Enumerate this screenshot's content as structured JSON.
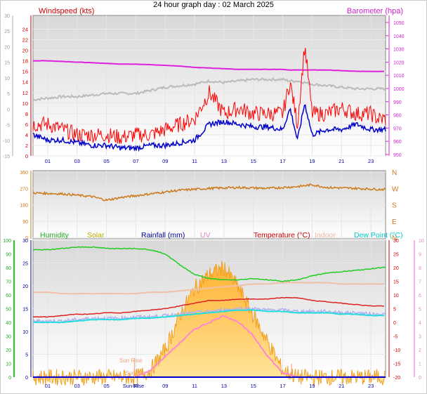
{
  "title": "24 hour graph day : 02 March 2025",
  "x_ticks": [
    "01",
    "03",
    "05",
    "07",
    "09",
    "11",
    "13",
    "15",
    "17",
    "19",
    "21",
    "23"
  ],
  "top_panel": {
    "left_label": "Windspeed (kts)",
    "right_label": "Barometer (hpa)",
    "left_ticks": [
      "24",
      "22",
      "20",
      "18",
      "16",
      "14",
      "12",
      "10",
      "8",
      "6",
      "4",
      "2",
      "0"
    ],
    "outer_left_ticks": [
      "30",
      "25",
      "20",
      "15",
      "10",
      "5",
      "0",
      "-5",
      "-10",
      "-15"
    ],
    "right_ticks": [
      "1050",
      "1040",
      "1030",
      "1020",
      "1010",
      "1000",
      "990",
      "980",
      "970",
      "960",
      "950"
    ],
    "colors": {
      "gust": "#ff0000",
      "wind": "#0000cc",
      "baro": "#dd22dd",
      "temp_bg": "#bbbbbb",
      "left_label": "#cc0000",
      "right_label": "#cc22cc"
    }
  },
  "mid_panel": {
    "left_ticks": [
      "360",
      "270",
      "180",
      "90",
      "0"
    ],
    "right_ticks": [
      "N",
      "W",
      "S",
      "E",
      "N"
    ],
    "color": "#cc7a1a"
  },
  "bottom_panel": {
    "headers": [
      {
        "text": "Humidity",
        "color": "#22aa22"
      },
      {
        "text": "Solar",
        "color": "#bbaa00"
      },
      {
        "text": "Rainfall (mm)",
        "color": "#000099"
      },
      {
        "text": "UV",
        "color": "#dd88cc"
      },
      {
        "text": "Temperature (°C)",
        "color": "#cc0000"
      },
      {
        "text": "Indoor",
        "color": "#f0b8a0"
      },
      {
        "text": "Dew Point (°C)",
        "color": "#00cccc"
      }
    ],
    "humidity_ticks": [
      "100",
      "90",
      "80",
      "70",
      "60",
      "50",
      "40",
      "30",
      "20",
      "10",
      "0"
    ],
    "rain_ticks": [
      "30",
      "25",
      "20",
      "15",
      "10",
      "5",
      "0"
    ],
    "temp_ticks": [
      "30",
      "25",
      "20",
      "15",
      "10",
      "5",
      "0",
      "-5",
      "-10",
      "-15",
      "-20"
    ],
    "uv_ticks": [
      "10",
      "9",
      "8",
      "7",
      "6",
      "5",
      "4",
      "3",
      "2",
      "1",
      "0"
    ],
    "annotations": {
      "sunrise": "Sun Rise",
      "sunset": "Sun Set",
      "sunrise_axis": "Sun Rise"
    }
  },
  "chart_data": [
    {
      "type": "line",
      "title": "24 hour graph day : 02 March 2025",
      "xlabel": "",
      "x": [
        0,
        1,
        2,
        3,
        4,
        5,
        6,
        7,
        8,
        9,
        10,
        11,
        12,
        13,
        14,
        15,
        16,
        17,
        17.5,
        18,
        18.5,
        19,
        20,
        21,
        22,
        23,
        23.5
      ],
      "series": [
        {
          "name": "Windspeed (kts)",
          "axis": "left",
          "values": [
            4,
            3,
            3,
            2.5,
            2,
            2,
            1.5,
            1.5,
            2,
            2,
            2.5,
            3,
            6,
            6.5,
            6,
            5.5,
            5.5,
            5,
            9,
            3,
            10,
            4,
            5,
            5,
            6,
            5,
            5
          ]
        },
        {
          "name": "Gust",
          "axis": "left",
          "values": [
            6,
            6,
            5,
            4,
            4,
            4,
            3.5,
            4,
            4,
            5,
            6,
            7,
            12,
            8,
            9,
            8,
            8,
            8,
            14,
            6,
            21,
            8,
            8,
            9,
            8,
            8,
            7
          ]
        },
        {
          "name": "Barometer (hpa)",
          "axis": "right",
          "values": [
            1021,
            1021,
            1020.5,
            1020,
            1019.5,
            1019,
            1018.5,
            1018.5,
            1018,
            1017.5,
            1017,
            1016,
            1015.5,
            1015,
            1014.5,
            1014.5,
            1014.5,
            1014.5,
            1014,
            1014,
            1014,
            1014,
            1014,
            1013.5,
            1013,
            1013,
            1013
          ]
        },
        {
          "name": "Temperature",
          "axis": "outer_left",
          "values": [
            3,
            3.5,
            4,
            4,
            4.5,
            5,
            5,
            5,
            6,
            7,
            7.5,
            8,
            9,
            8.5,
            9,
            9.5,
            9.5,
            9.5,
            9,
            9,
            8.5,
            8,
            7.5,
            7,
            6.5,
            6.5,
            6.5
          ]
        }
      ],
      "ylim_left": [
        0,
        25
      ],
      "ylim_right": [
        950,
        1050
      ],
      "ylim_outer_left": [
        -15,
        30
      ]
    },
    {
      "type": "scatter",
      "title": "",
      "x": [
        0,
        2,
        4,
        5,
        6,
        8,
        10,
        12,
        14,
        16,
        18,
        19,
        20,
        22,
        23.5
      ],
      "series": [
        {
          "name": "Wind direction",
          "values": [
            245,
            240,
            225,
            205,
            220,
            240,
            260,
            270,
            275,
            270,
            280,
            290,
            275,
            270,
            265
          ]
        }
      ],
      "ylim": [
        0,
        360
      ]
    },
    {
      "type": "line",
      "title": "",
      "x": [
        0,
        1,
        2,
        3,
        4,
        5,
        6,
        7,
        8,
        9,
        10,
        11,
        12,
        13,
        14,
        15,
        16,
        17,
        18,
        19,
        20,
        21,
        22,
        23,
        23.5
      ],
      "series": [
        {
          "name": "Humidity",
          "axis": "humidity",
          "values": [
            93,
            93,
            94,
            95,
            95,
            94,
            94,
            94,
            93,
            90,
            82,
            75,
            72,
            71,
            71,
            72,
            71,
            70,
            71,
            74,
            76,
            77,
            78,
            79,
            80
          ]
        },
        {
          "name": "Temperature (°C)",
          "axis": "temp",
          "values": [
            2,
            2,
            2.5,
            3,
            3,
            3.5,
            3.5,
            4,
            4.5,
            5,
            6,
            7,
            8,
            8,
            8.5,
            8.5,
            8.5,
            9,
            9,
            8,
            7.5,
            7,
            6.5,
            6,
            6
          ]
        },
        {
          "name": "Indoor",
          "axis": "temp",
          "values": [
            11,
            11,
            10.5,
            10.5,
            10.5,
            10.5,
            10.5,
            10.5,
            11,
            11,
            11.5,
            12,
            12.5,
            13,
            13.5,
            14,
            14,
            14.5,
            14.5,
            14.5,
            14.5,
            14,
            14,
            14,
            14
          ]
        },
        {
          "name": "Dew Point (°C)",
          "axis": "temp",
          "values": [
            0.5,
            0.5,
            0.5,
            1,
            1.5,
            1.5,
            1.5,
            2,
            2,
            2.5,
            3,
            3.5,
            4,
            4.5,
            5,
            5,
            4.5,
            4.5,
            4,
            4,
            4,
            3.5,
            3.5,
            3,
            3
          ]
        },
        {
          "name": "Solar",
          "axis": "uv",
          "values": [
            0,
            0,
            0,
            0,
            0,
            0,
            0,
            0,
            0.5,
            2,
            4.5,
            6.5,
            7.5,
            8,
            6.5,
            4.5,
            2.5,
            0.5,
            0,
            0,
            0,
            0,
            0,
            0,
            0
          ]
        },
        {
          "name": "UV",
          "axis": "uv",
          "values": [
            0,
            0,
            0,
            0,
            0,
            0,
            0,
            0,
            0.5,
            1.5,
            2.5,
            3.5,
            4,
            4.5,
            4,
            3,
            1.5,
            0.3,
            0,
            0,
            0,
            0,
            0,
            0,
            0
          ]
        },
        {
          "name": "Rainfall (mm)",
          "axis": "rain",
          "values": [
            0,
            0,
            0,
            0,
            0,
            0,
            0,
            0,
            0,
            0,
            0,
            0,
            0,
            0,
            0,
            0,
            0,
            0,
            0,
            0,
            0,
            0,
            0,
            0,
            0
          ]
        }
      ],
      "ylim_humidity": [
        0,
        100
      ],
      "ylim_rain": [
        0,
        30
      ],
      "ylim_temp": [
        -20,
        30
      ],
      "ylim_uv": [
        0,
        10
      ]
    }
  ]
}
